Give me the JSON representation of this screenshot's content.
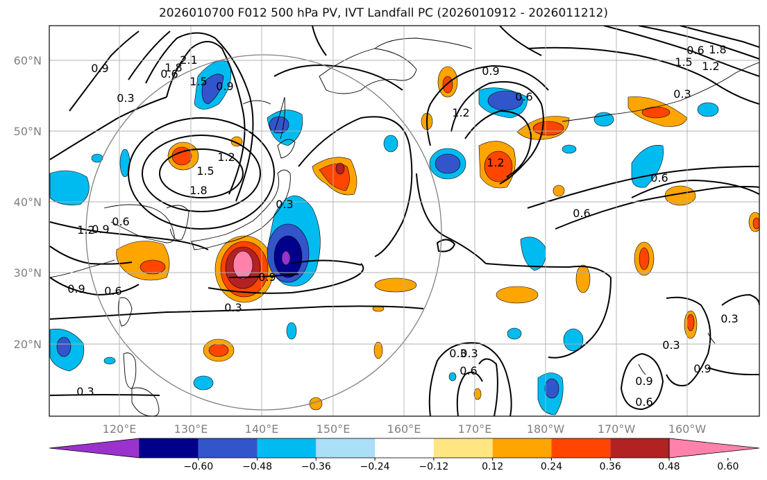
{
  "title": "2026010700 F012 500 hPa PV, IVT Landfall PC (2026010912 - 2026011212)",
  "axes": {
    "lat_ticks": [
      "60°N",
      "50°N",
      "40°N",
      "30°N",
      "20°N"
    ],
    "lon_ticks": [
      "120°E",
      "130°E",
      "140°E",
      "150°E",
      "160°E",
      "170°E",
      "180°W",
      "170°W",
      "160°W"
    ]
  },
  "colorbar": {
    "tick_labels": [
      "−0.60",
      "−0.48",
      "−0.36",
      "−0.24",
      "−0.12",
      "0.12",
      "0.24",
      "0.36",
      "0.48",
      "0.60"
    ],
    "colors": [
      "#9933cc",
      "#00008b",
      "#3355cc",
      "#00bbf0",
      "#aadff8",
      "#ffffff",
      "#ffe680",
      "#ffa500",
      "#ff4500",
      "#b22222",
      "#ff82ab"
    ],
    "extend": "both"
  },
  "contour_labels": [
    "2.1",
    "1.8",
    "1.5",
    "0.9",
    "0.3",
    "0.9",
    "0.6",
    "1.2",
    "1.5",
    "1.8",
    "0.6",
    "0.9",
    "1.2",
    "0.3",
    "0.9",
    "0.6",
    "0.9",
    "0.3",
    "0.9",
    "0.6",
    "1.2",
    "1.2",
    "0.6",
    "0.6",
    "0.3",
    "0.3",
    "0.3",
    "0.6",
    "0.9",
    "0.6",
    "0.3",
    "0.3",
    "0.9",
    "0.6",
    "1.8",
    "1.5",
    "1.2",
    "0.3"
  ]
}
